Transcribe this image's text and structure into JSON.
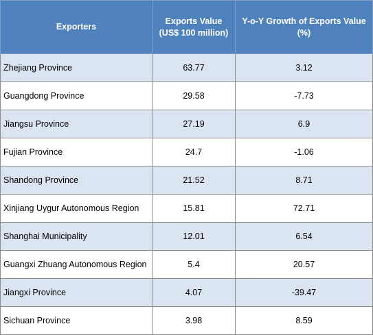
{
  "table": {
    "headers": {
      "exporters": "Exporters",
      "value_line1": "Exports Value",
      "value_line2": "(US$ 100 million)",
      "growth_line1": "Y-o-Y Growth of Exports Value",
      "growth_line2": "(%)"
    },
    "rows": [
      {
        "region": "Zhejiang Province",
        "value": "63.77",
        "growth": "3.12"
      },
      {
        "region": "Guangdong Province",
        "value": "29.58",
        "growth": "-7.73"
      },
      {
        "region": "Jiangsu Province",
        "value": "27.19",
        "growth": "6.9"
      },
      {
        "region": "Fujian Province",
        "value": "24.7",
        "growth": "-1.06"
      },
      {
        "region": "Shandong Province",
        "value": "21.52",
        "growth": "8.71"
      },
      {
        "region": "Xinjiang Uygur Autonomous Region",
        "value": "15.81",
        "growth": "72.71"
      },
      {
        "region": "Shanghai Municipality",
        "value": "12.01",
        "growth": "6.54"
      },
      {
        "region": "Guangxi Zhuang Autonomous Region",
        "value": "5.4",
        "growth": "20.57"
      },
      {
        "region": "Jiangxi Province",
        "value": "4.07",
        "growth": "-39.47"
      },
      {
        "region": "Sichuan Province",
        "value": "3.98",
        "growth": "8.59"
      }
    ]
  },
  "colors": {
    "header_bg": "#4f81bd",
    "header_text": "#ffffff",
    "band_row": "#dbe5f1",
    "plain_row": "#ffffff"
  }
}
